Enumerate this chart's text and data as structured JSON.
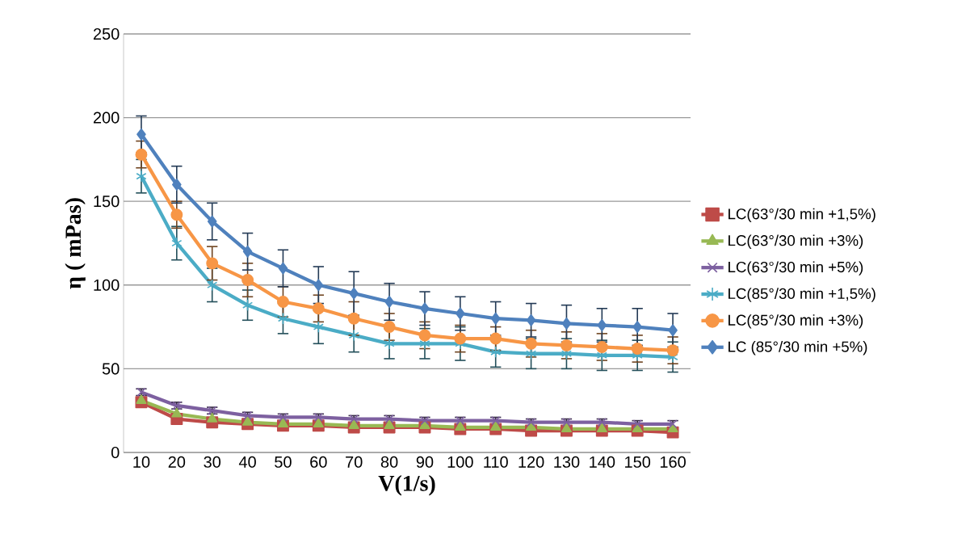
{
  "chart_data": {
    "type": "line",
    "xlabel": "V(1/s)",
    "ylabel": "η ( mPas)",
    "categories": [
      "10",
      "20",
      "30",
      "40",
      "50",
      "60",
      "70",
      "80",
      "90",
      "100",
      "110",
      "120",
      "130",
      "140",
      "150",
      "160"
    ],
    "ylim": [
      0,
      250
    ],
    "yticks": [
      0,
      50,
      100,
      150,
      200,
      250
    ],
    "grid": "y",
    "legend": "right",
    "line_style": "solid",
    "series": [
      {
        "name": "LC(63°/30 min +1,5%)",
        "color": "#be4b48",
        "marker": "square",
        "values": [
          30,
          20,
          18,
          17,
          16,
          16,
          15,
          15,
          15,
          14,
          14,
          13,
          13,
          13,
          13,
          12
        ]
      },
      {
        "name": "LC(63°/30 min +3%)",
        "color": "#98b954",
        "marker": "triangle",
        "values": [
          31,
          23,
          20,
          18,
          17,
          17,
          16,
          16,
          16,
          15,
          15,
          15,
          14,
          14,
          14,
          14
        ]
      },
      {
        "name": "LC(63°/30 min +5%)",
        "color": "#7d60a0",
        "marker": "cross",
        "values": [
          36,
          28,
          25,
          22,
          21,
          21,
          20,
          20,
          19,
          19,
          19,
          18,
          18,
          18,
          17,
          17
        ],
        "errors": [
          2,
          2,
          2,
          2,
          2,
          2,
          2,
          2,
          2,
          2,
          2,
          2,
          2,
          2,
          2,
          2
        ]
      },
      {
        "name": "LC(85°/30 min +1,5%)",
        "color": "#4bacc6",
        "marker": "cross",
        "values": [
          165,
          125,
          100,
          88,
          80,
          75,
          70,
          65,
          65,
          65,
          60,
          59,
          59,
          58,
          58,
          57
        ],
        "errors": [
          10,
          10,
          10,
          9,
          9,
          10,
          10,
          9,
          9,
          10,
          9,
          9,
          9,
          9,
          9,
          9
        ]
      },
      {
        "name": "LC(85°/30 min +3%)",
        "color": "#f79646",
        "marker": "circle",
        "values": [
          178,
          142,
          113,
          103,
          90,
          86,
          80,
          75,
          70,
          68,
          68,
          65,
          64,
          63,
          62,
          61
        ],
        "errors": [
          8,
          8,
          10,
          10,
          9,
          8,
          10,
          8,
          8,
          8,
          7,
          8,
          8,
          8,
          8,
          8
        ]
      },
      {
        "name": "LC (85°/30 min +5%)",
        "color": "#4f81bd",
        "marker": "diamond",
        "values": [
          190,
          160,
          138,
          120,
          110,
          100,
          95,
          90,
          86,
          83,
          80,
          79,
          77,
          76,
          75,
          73
        ],
        "errors": [
          11,
          11,
          11,
          11,
          11,
          11,
          13,
          11,
          10,
          10,
          10,
          10,
          11,
          10,
          11,
          10
        ]
      }
    ]
  }
}
